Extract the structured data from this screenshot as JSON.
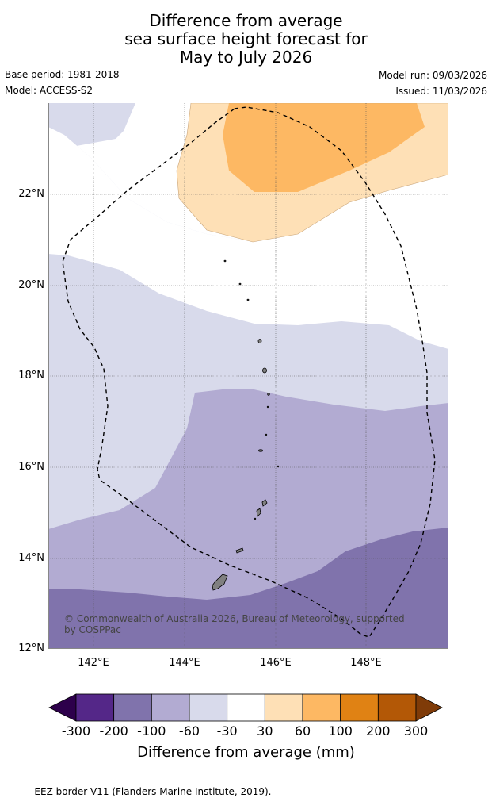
{
  "title_lines": [
    "Difference from average",
    "sea surface height forecast for",
    "May to July 2026"
  ],
  "meta": {
    "base_period": "Base period: 1981-2018",
    "model": "Model: ACCESS-S2",
    "model_run": "Model run: 09/03/2026",
    "issued": "Issued: 11/03/2026"
  },
  "map": {
    "lat_labels": [
      "22°N",
      "20°N",
      "18°N",
      "16°N",
      "14°N",
      "12°N"
    ],
    "lon_labels": [
      "142°E",
      "144°E",
      "146°E",
      "148°E"
    ],
    "copyright": "© Commonwealth of Australia 2026, Bureau of Meteorology, supported by COSPPac",
    "border_layer": "EEZ border V11",
    "land_color": "#808080"
  },
  "colorbar": {
    "ticks": [
      "-300",
      "-200",
      "-100",
      "-60",
      "-30",
      "30",
      "60",
      "100",
      "200",
      "300"
    ],
    "colors": [
      "#2d004b",
      "#542788",
      "#8073ac",
      "#b2abd2",
      "#d8daeb",
      "#ffffff",
      "#fee0b6",
      "#fdb863",
      "#e08214",
      "#b35806",
      "#7f3b08"
    ],
    "label": "Difference from average (mm)"
  },
  "legend_note": "--  --  -- EEZ border V11 (Flanders Marine Institute, 2019)."
}
